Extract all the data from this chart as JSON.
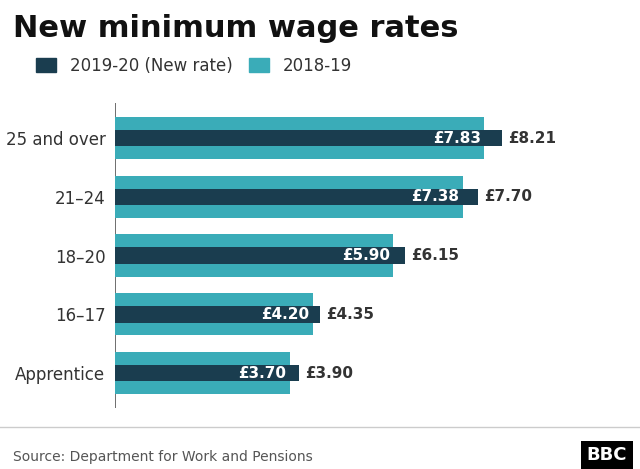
{
  "title": "New minimum wage rates",
  "categories": [
    "25 and over",
    "21–24",
    "18–20",
    "16–17",
    "Apprentice"
  ],
  "values_2018_19": [
    7.83,
    7.38,
    5.9,
    4.2,
    3.7
  ],
  "values_2019_20": [
    8.21,
    7.7,
    6.15,
    4.35,
    3.9
  ],
  "labels_2018_19": [
    "£7.83",
    "£7.38",
    "£5.90",
    "£4.20",
    "£3.70"
  ],
  "labels_2019_20": [
    "£8.21",
    "£7.70",
    "£6.15",
    "£4.35",
    "£3.90"
  ],
  "color_2018_19": "#3aacb8",
  "color_2019_20": "#1a3d4f",
  "legend_label_2019_20": "2019-20 (New rate)",
  "legend_label_2018_19": "2018-19",
  "source": "Source: Department for Work and Pensions",
  "background_color": "#ffffff",
  "xlim": [
    0,
    9.5
  ],
  "title_fontsize": 22,
  "axis_label_fontsize": 12,
  "legend_fontsize": 12,
  "annotation_fontsize": 11,
  "source_fontsize": 10,
  "bbc_text": "BBC"
}
